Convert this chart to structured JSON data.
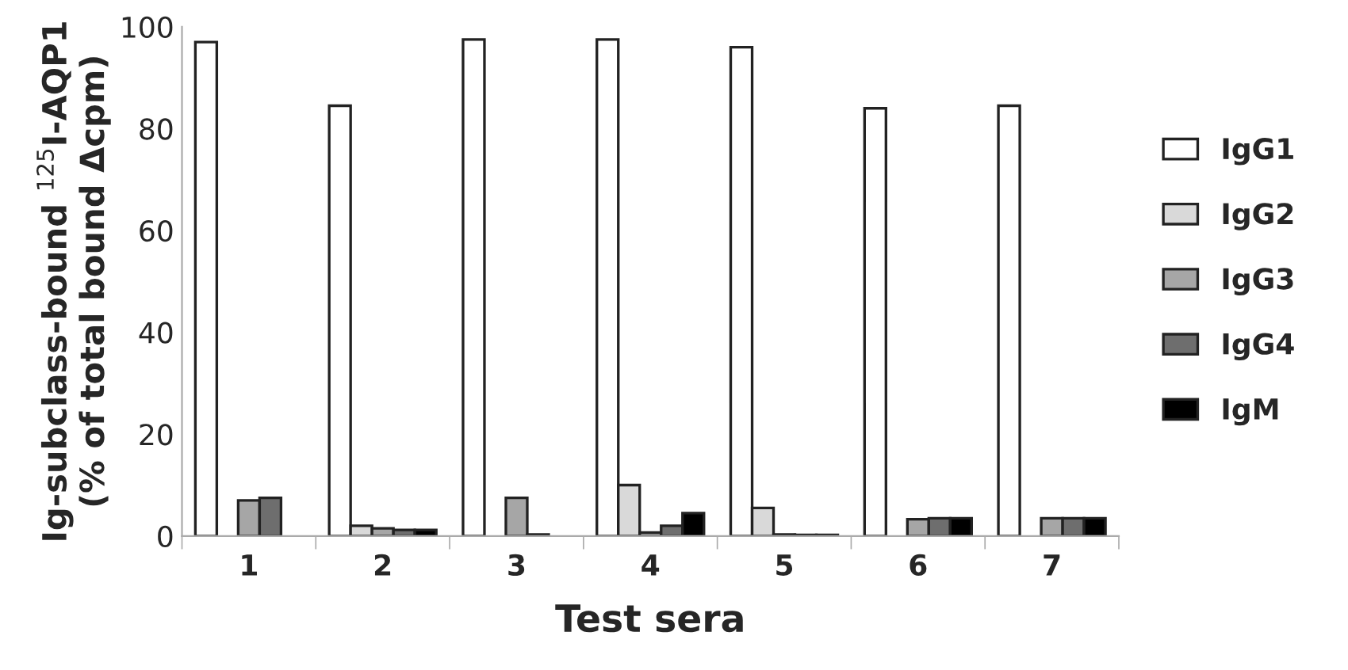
{
  "chart_data": {
    "type": "bar",
    "xlabel": "Test sera",
    "ylabel": "Ig-subclass-bound $^{125}$I-AQP1\n(% of total bound Δcpm)",
    "categories": [
      "1",
      "2",
      "3",
      "4",
      "5",
      "6",
      "7"
    ],
    "series": [
      {
        "name": "IgG1",
        "color": "#ffffff",
        "values": [
          97,
          84.5,
          97.5,
          97.5,
          96,
          84,
          84.5
        ]
      },
      {
        "name": "IgG2",
        "color": "#d9d9d9",
        "values": [
          null,
          2,
          null,
          10,
          5.5,
          null,
          null
        ]
      },
      {
        "name": "IgG3",
        "color": "#a6a6a6",
        "values": [
          7,
          1.5,
          7.5,
          0.7,
          0.3,
          3.3,
          3.5
        ]
      },
      {
        "name": "IgG4",
        "color": "#6e6e6e",
        "values": [
          7.5,
          1.2,
          0.3,
          2,
          0.2,
          3.5,
          3.5
        ]
      },
      {
        "name": "IgM",
        "color": "#000000",
        "values": [
          null,
          1.2,
          null,
          4.5,
          0.2,
          3.5,
          3.5
        ]
      }
    ],
    "ylim": [
      0,
      100
    ],
    "yticks": [
      0,
      20,
      40,
      60,
      80,
      100
    ],
    "grid": false,
    "legend": "right"
  }
}
